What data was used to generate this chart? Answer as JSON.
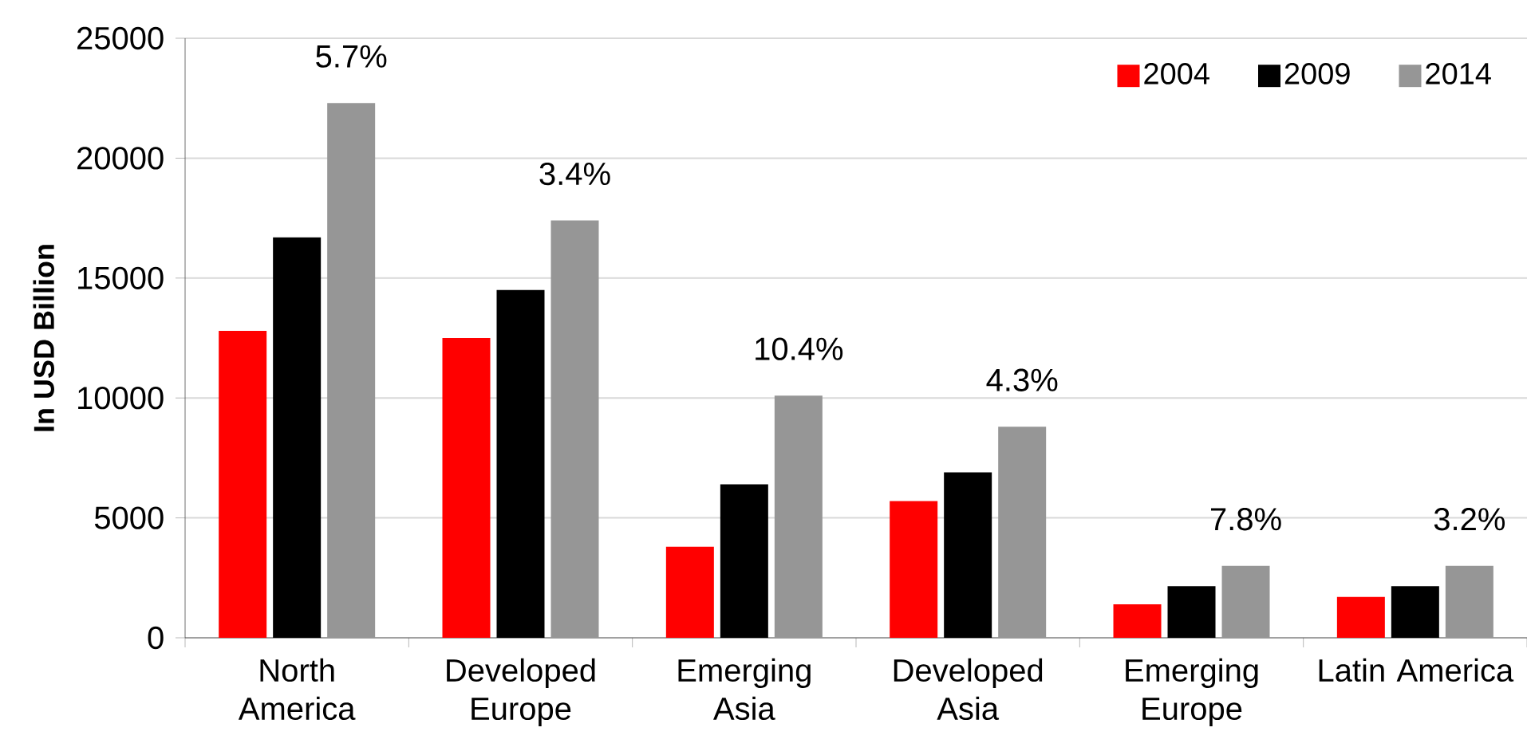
{
  "chart_data": {
    "type": "bar",
    "ylabel": "In USD Billion",
    "categories": [
      "North America",
      "Developed Europe",
      "Emerging Asia",
      "Developed Asia",
      "Emerging Europe",
      "Latin America"
    ],
    "series": [
      {
        "name": "2004",
        "color": "#ff0000",
        "values": [
          12800,
          12500,
          3800,
          5700,
          1400,
          1700
        ]
      },
      {
        "name": "2009",
        "color": "#000000",
        "values": [
          16700,
          14500,
          6400,
          6900,
          2150,
          2150
        ]
      },
      {
        "name": "2014",
        "color": "#969696",
        "values": [
          22300,
          17400,
          10100,
          8800,
          3000,
          3000
        ]
      }
    ],
    "annotations": [
      "5.7%",
      "3.4%",
      "10.4%",
      "4.3%",
      "7.8%",
      "3.2%"
    ],
    "ylim": [
      0,
      25000
    ],
    "yticks": [
      0,
      5000,
      10000,
      15000,
      20000,
      25000
    ],
    "grid": "y",
    "legend": "top right"
  }
}
